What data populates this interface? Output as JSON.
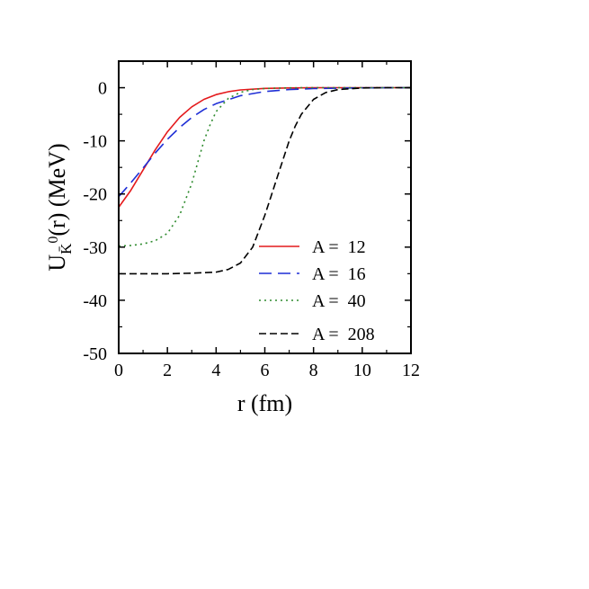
{
  "chart_data": {
    "type": "line",
    "title": "",
    "xlabel": "r (fm)",
    "ylabel": {
      "main": "U",
      "subscript": "K̄",
      "superscript": "0",
      "suffix": "(r) (MeV)"
    },
    "xlim": [
      0,
      12
    ],
    "ylim": [
      -50,
      5
    ],
    "xticks": [
      0,
      2,
      4,
      6,
      8,
      10,
      12
    ],
    "yticks": [
      0,
      -10,
      -20,
      -30,
      -40,
      -50
    ],
    "grid": false,
    "legend_position": "bottom-right",
    "series": [
      {
        "name": "A =  12",
        "color": "#e41a1c",
        "dash": "solid",
        "x": [
          0,
          0.5,
          1,
          1.5,
          2,
          2.5,
          3,
          3.5,
          4,
          4.5,
          5,
          6,
          7,
          8,
          9,
          10,
          11,
          12
        ],
        "y": [
          -22.5,
          -19.3,
          -15.5,
          -11.7,
          -8.3,
          -5.6,
          -3.6,
          -2.2,
          -1.3,
          -0.75,
          -0.42,
          -0.13,
          -0.04,
          -0.01,
          0,
          0,
          0,
          0
        ]
      },
      {
        "name": "A =  16",
        "color": "#1f2fd6",
        "dash": "long-dash",
        "x": [
          0,
          0.5,
          1,
          1.5,
          2,
          2.5,
          3,
          3.5,
          4,
          5,
          6,
          7,
          8,
          9,
          10,
          11,
          12
        ],
        "y": [
          -20.5,
          -17.9,
          -15.1,
          -12.3,
          -9.7,
          -7.5,
          -5.6,
          -4.1,
          -3.0,
          -1.5,
          -0.72,
          -0.34,
          -0.16,
          -0.07,
          -0.03,
          -0.01,
          0
        ]
      },
      {
        "name": "A =  40",
        "color": "#2e8b2e",
        "dash": "dotted",
        "x": [
          0,
          0.5,
          1,
          1.5,
          2,
          2.5,
          3,
          3.25,
          3.5,
          3.75,
          4,
          4.5,
          5,
          5.5,
          6,
          7,
          8,
          9,
          10,
          11,
          12
        ],
        "y": [
          -29.8,
          -29.7,
          -29.4,
          -28.8,
          -27.4,
          -24.0,
          -18.0,
          -14.0,
          -10.0,
          -7.0,
          -4.5,
          -2.0,
          -0.85,
          -0.35,
          -0.15,
          -0.02,
          0,
          0,
          0,
          0,
          0
        ]
      },
      {
        "name": "A =  208",
        "color": "#000000",
        "dash": "dashed",
        "x": [
          0,
          1,
          2,
          3,
          4,
          4.5,
          5,
          5.5,
          6,
          6.25,
          6.5,
          6.75,
          7,
          7.25,
          7.5,
          8,
          8.5,
          9,
          10,
          11,
          12
        ],
        "y": [
          -35.0,
          -35.0,
          -35.0,
          -34.9,
          -34.7,
          -34.2,
          -33.0,
          -30.0,
          -24.0,
          -20.5,
          -17.0,
          -13.5,
          -10.0,
          -7.2,
          -5.0,
          -2.2,
          -0.9,
          -0.35,
          -0.05,
          0,
          0
        ]
      }
    ]
  }
}
